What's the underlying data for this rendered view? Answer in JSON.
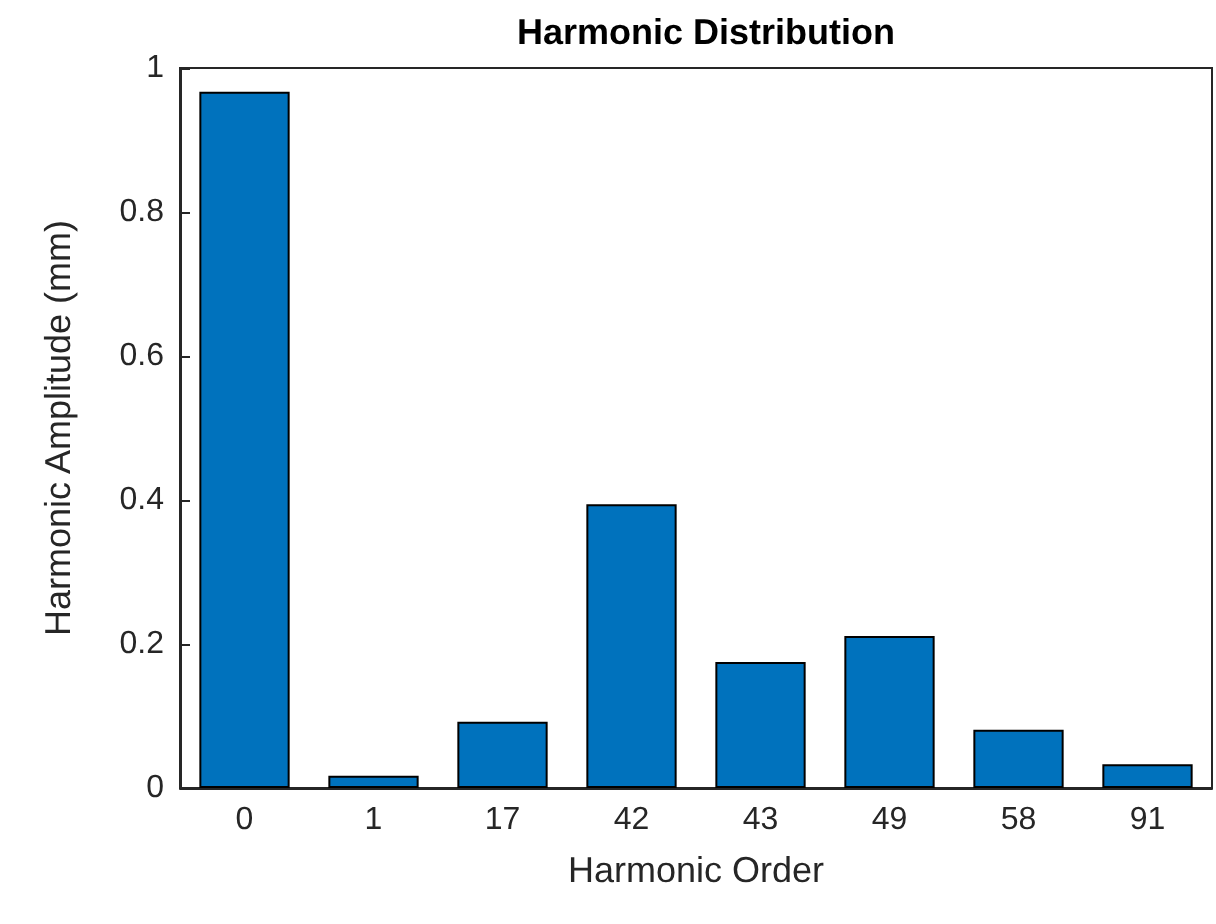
{
  "chart_data": {
    "type": "bar",
    "title": "Harmonic Distribution",
    "xlabel": "Harmonic Order",
    "ylabel": "Harmonic Amplitude (mm)",
    "categories": [
      "0",
      "1",
      "17",
      "42",
      "43",
      "49",
      "58",
      "91"
    ],
    "values": [
      0.967,
      0.017,
      0.092,
      0.394,
      0.175,
      0.211,
      0.081,
      0.033
    ],
    "color": "#0072bd",
    "ylim": [
      0,
      1
    ],
    "yticks": [
      0,
      0.2,
      0.4,
      0.6,
      0.8,
      1
    ],
    "grid": false
  }
}
